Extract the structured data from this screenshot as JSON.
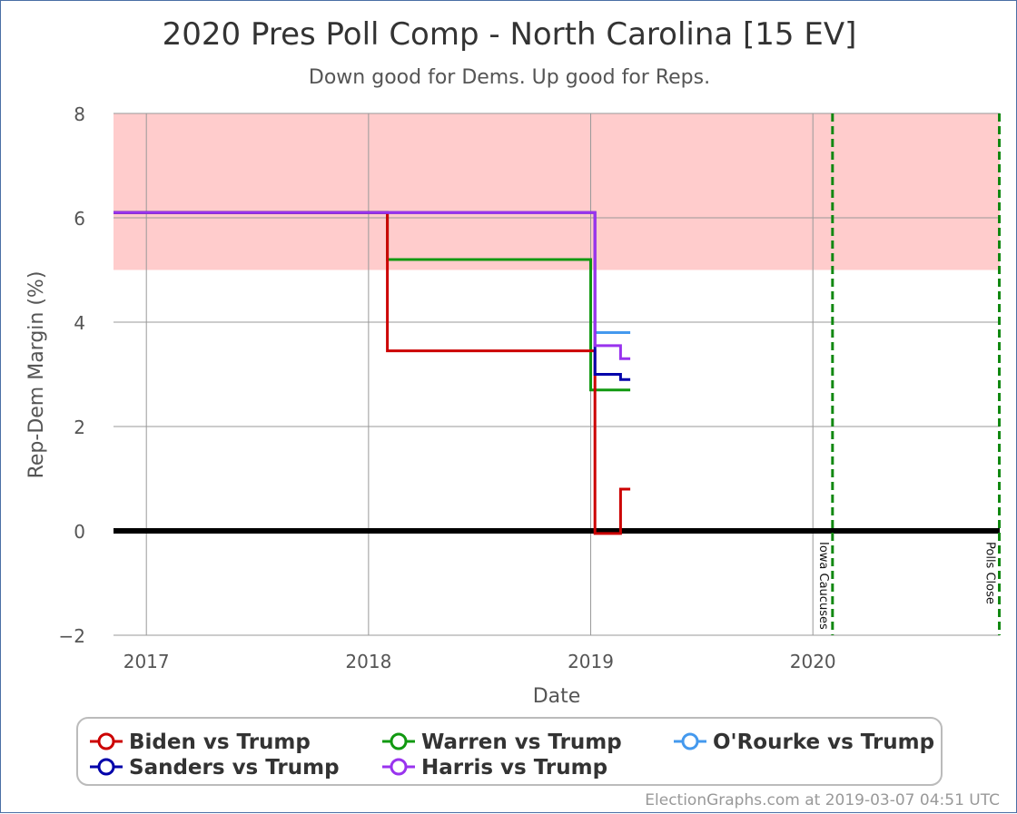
{
  "chart_data": {
    "type": "line",
    "title": "2020 Pres Poll Comp - North Carolina [15 EV]",
    "subtitle": "Down good for Dems. Up good for Reps.",
    "xlabel": "Date",
    "ylabel": "Rep-Dem Margin (%)",
    "xlim": [
      "2016-11-08",
      "2020-11-03"
    ],
    "ylim": [
      -2,
      8
    ],
    "x_ticks": [
      {
        "label": "2017",
        "date": "2017-01-01"
      },
      {
        "label": "2018",
        "date": "2018-01-01"
      },
      {
        "label": "2019",
        "date": "2019-01-01"
      },
      {
        "label": "2020",
        "date": "2020-01-01"
      }
    ],
    "y_ticks": [
      -2,
      0,
      2,
      4,
      6,
      8
    ],
    "shaded_band": {
      "y_from": 5,
      "y_to": 8,
      "color": "#ffcccc"
    },
    "zero_line": 0,
    "events": [
      {
        "label": "Iowa Caucuses",
        "date": "2020-02-03",
        "color": "#118811"
      },
      {
        "label": "Polls Close",
        "date": "2020-11-03",
        "color": "#118811"
      }
    ],
    "series": [
      {
        "name": "Warren vs Trump",
        "color": "#119911",
        "points": [
          [
            "2016-11-08",
            6.1
          ],
          [
            "2018-02-01",
            6.1
          ],
          [
            "2018-02-01",
            5.2
          ],
          [
            "2019-01-01",
            5.2
          ],
          [
            "2019-01-01",
            2.7
          ],
          [
            "2019-03-07",
            2.7
          ]
        ]
      },
      {
        "name": "Biden vs Trump",
        "color": "#cc0000",
        "points": [
          [
            "2016-11-08",
            6.1
          ],
          [
            "2018-02-01",
            6.1
          ],
          [
            "2018-02-01",
            3.45
          ],
          [
            "2019-01-01",
            3.45
          ],
          [
            "2019-01-08",
            3.45
          ],
          [
            "2019-01-08",
            -0.05
          ],
          [
            "2019-02-19",
            -0.05
          ],
          [
            "2019-02-19",
            0.8
          ],
          [
            "2019-03-07",
            0.8
          ]
        ]
      },
      {
        "name": "O'Rourke vs Trump",
        "color": "#4499ee",
        "points": [
          [
            "2019-01-08",
            3.8
          ],
          [
            "2019-03-07",
            3.8
          ]
        ]
      },
      {
        "name": "Sanders vs Trump",
        "color": "#0000aa",
        "points": [
          [
            "2016-11-08",
            6.1
          ],
          [
            "2019-01-08",
            6.1
          ],
          [
            "2019-01-08",
            3.0
          ],
          [
            "2019-02-19",
            3.0
          ],
          [
            "2019-02-19",
            2.9
          ],
          [
            "2019-03-07",
            2.9
          ]
        ]
      },
      {
        "name": "Harris vs Trump",
        "color": "#9933ee",
        "points": [
          [
            "2016-11-08",
            6.1
          ],
          [
            "2019-01-08",
            6.1
          ],
          [
            "2019-01-08",
            3.55
          ],
          [
            "2019-02-19",
            3.55
          ],
          [
            "2019-02-19",
            3.3
          ],
          [
            "2019-03-07",
            3.3
          ]
        ]
      }
    ],
    "legend": {
      "placement": "bottom",
      "entries": [
        {
          "name": "Biden vs Trump",
          "color": "#cc0000"
        },
        {
          "name": "Warren vs Trump",
          "color": "#119911"
        },
        {
          "name": "O'Rourke vs Trump",
          "color": "#4499ee"
        },
        {
          "name": "Sanders vs Trump",
          "color": "#0000aa"
        },
        {
          "name": "Harris vs Trump",
          "color": "#9933ee"
        }
      ]
    },
    "credit": "ElectionGraphs.com at 2019-03-07 04:51 UTC"
  }
}
